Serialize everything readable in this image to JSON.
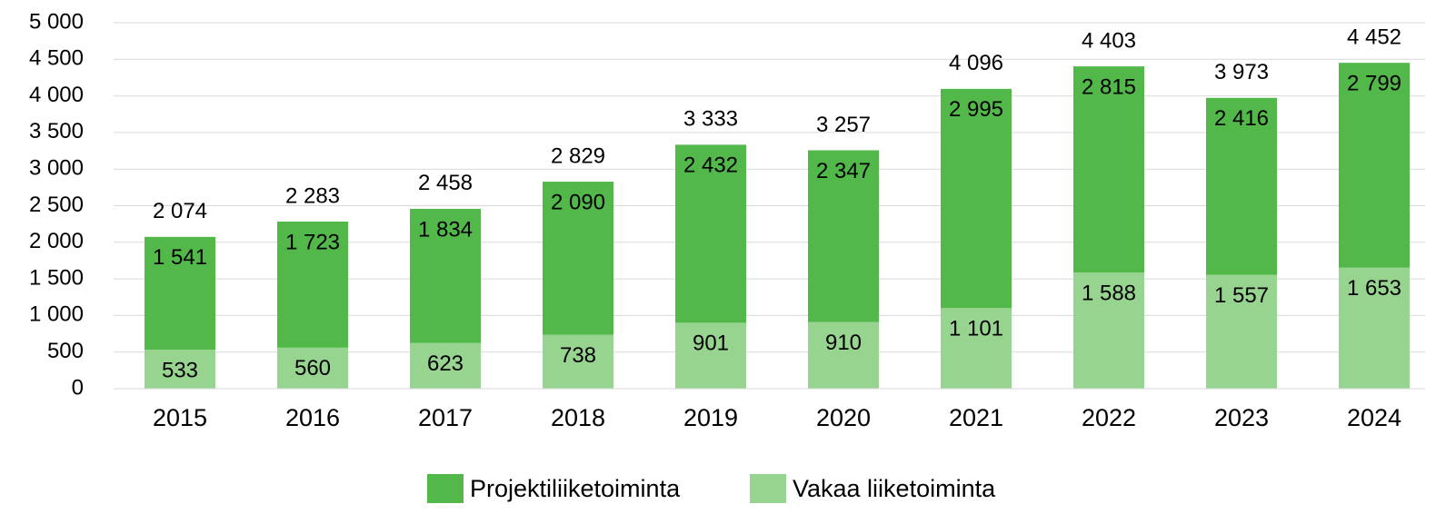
{
  "chart_data": {
    "type": "stacked_bar",
    "categories": [
      "2015",
      "2016",
      "2017",
      "2018",
      "2019",
      "2020",
      "2021",
      "2022",
      "2023",
      "2024"
    ],
    "series": [
      {
        "name": "Vakaa liiketoiminta",
        "color": "#97d48f",
        "values": [
          533,
          560,
          623,
          738,
          901,
          910,
          1101,
          1588,
          1557,
          1653
        ],
        "value_labels": [
          "533",
          "560",
          "623",
          "738",
          "901",
          "910",
          "1 101",
          "1 588",
          "1 557",
          "1 653"
        ]
      },
      {
        "name": "Projektiliiketoiminta",
        "color": "#52b84a",
        "values": [
          1541,
          1723,
          1834,
          2090,
          2432,
          2347,
          2995,
          2815,
          2416,
          2799
        ],
        "value_labels": [
          "1 541",
          "1 723",
          "1 834",
          "2 090",
          "2 432",
          "2 347",
          "2 995",
          "2 815",
          "2 416",
          "2 799"
        ]
      }
    ],
    "totals": [
      2074,
      2283,
      2458,
      2829,
      3333,
      3257,
      4096,
      4403,
      3973,
      4452
    ],
    "total_labels": [
      "2 074",
      "2 283",
      "2 458",
      "2 829",
      "3 333",
      "3 257",
      "4 096",
      "4 403",
      "3 973",
      "4 452"
    ],
    "ylim": [
      0,
      5000
    ],
    "yticks": [
      0,
      500,
      {
        "value": 1000,
        "label": "1 000"
      },
      {
        "value": 1500,
        "label": "1 500"
      },
      {
        "value": 2000,
        "label": "2 000"
      },
      {
        "value": 2500,
        "label": "2 500"
      },
      {
        "value": 3000,
        "label": "3 000"
      },
      {
        "value": 3500,
        "label": "3 500"
      },
      {
        "value": 4000,
        "label": "4 000"
      },
      {
        "value": 4500,
        "label": "4 500"
      },
      {
        "value": 5000,
        "label": "5 000"
      }
    ],
    "grid": true,
    "legend": "bottom"
  }
}
